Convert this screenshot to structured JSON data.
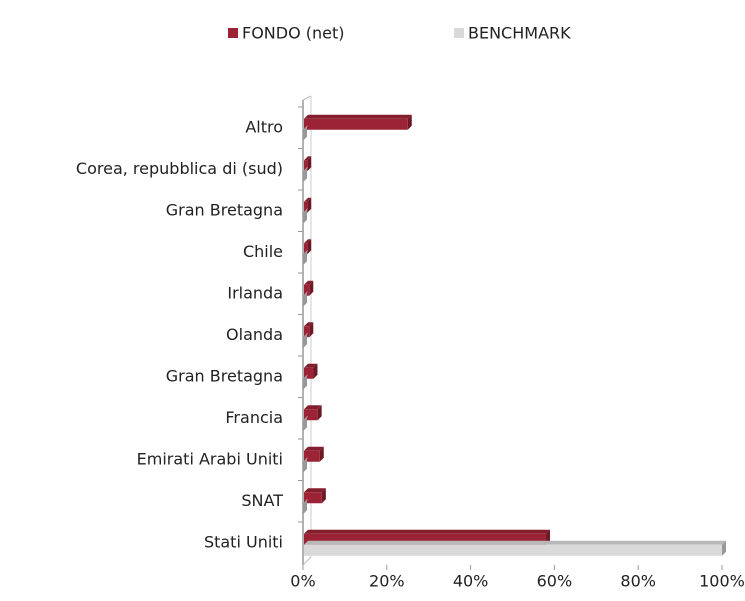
{
  "chart_data": {
    "type": "bar",
    "orientation": "horizontal",
    "categories": [
      "Altro",
      "Corea, repubblica di (sud)",
      "Gran Bretagna",
      "Chile",
      "Irlanda",
      "Olanda",
      "Gran Bretagna",
      "Francia",
      "Emirati Arabi Uniti",
      "SNAT",
      "Stati Uniti"
    ],
    "series": [
      {
        "name": "FONDO (net)",
        "color": "#9b2335",
        "values": [
          25,
          1,
          1,
          1,
          1.5,
          1.5,
          2.5,
          3.5,
          4,
          4.5,
          58
        ]
      },
      {
        "name": "BENCHMARK",
        "color": "#d9d9d9",
        "values": [
          0,
          0,
          0,
          0,
          0,
          0,
          0,
          0,
          0,
          0,
          100
        ]
      }
    ],
    "xlim": [
      0,
      100
    ],
    "xticks": [
      {
        "value": 0,
        "label": "0%"
      },
      {
        "value": 20,
        "label": "20%"
      },
      {
        "value": 40,
        "label": "40%"
      },
      {
        "value": 60,
        "label": "60%"
      },
      {
        "value": 80,
        "label": "80%"
      },
      {
        "value": 100,
        "label": "100%"
      }
    ],
    "legend": "top"
  }
}
